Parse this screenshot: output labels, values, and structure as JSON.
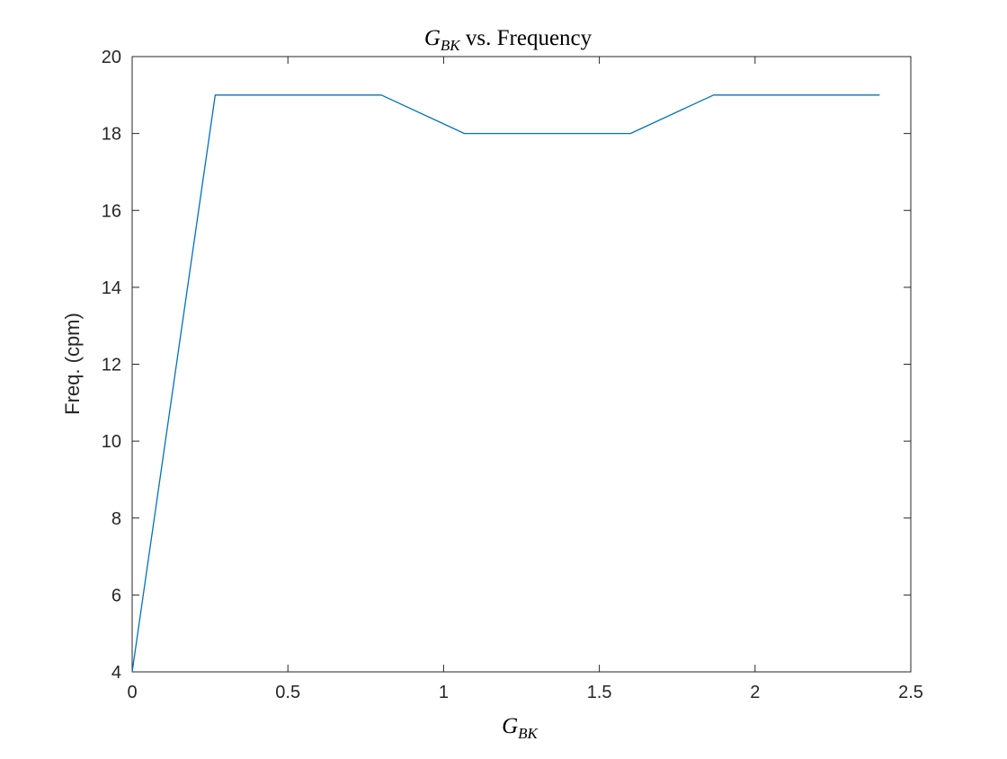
{
  "chart_data": {
    "type": "line",
    "title": "G_BK vs. Frequency",
    "title_parts": {
      "symbol": "G",
      "subscript": "BK",
      "rest": " vs. Frequency"
    },
    "xlabel": "G_BK",
    "xlabel_parts": {
      "symbol": "G",
      "subscript": "BK"
    },
    "ylabel": "Freq. (cpm)",
    "xlim": [
      0,
      2.5
    ],
    "ylim": [
      4,
      20
    ],
    "xticks": [
      0,
      0.5,
      1,
      1.5,
      2,
      2.5
    ],
    "xtick_labels": [
      "0",
      "0.5",
      "1",
      "1.5",
      "2",
      "2.5"
    ],
    "yticks": [
      4,
      6,
      8,
      10,
      12,
      14,
      16,
      18,
      20
    ],
    "ytick_labels": [
      "4",
      "6",
      "8",
      "10",
      "12",
      "14",
      "16",
      "18",
      "20"
    ],
    "grid": false,
    "line_color": "#0072BD",
    "axis_color": "#262626",
    "series": [
      {
        "x": [
          0,
          0.2667,
          0.5333,
          0.8,
          1.0667,
          1.3333,
          1.6,
          1.8667,
          2.1333,
          2.4
        ],
        "y": [
          4,
          19,
          19,
          19,
          18,
          18,
          18,
          19,
          19,
          19
        ]
      }
    ]
  }
}
